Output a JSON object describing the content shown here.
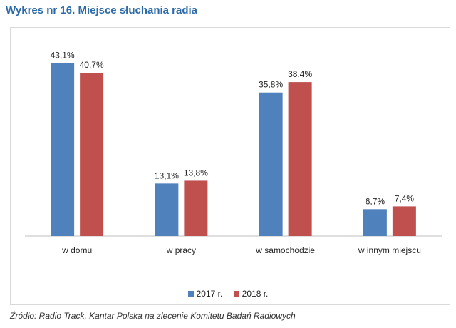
{
  "title": "Wykres nr 16. Miejsce słuchania radia",
  "source": "Źródło: Radio Track, Kantar Polska na zlecenie Komitetu Badań Radiowych",
  "chart_data": {
    "type": "bar",
    "title": "Wykres nr 16. Miejsce słuchania radia",
    "xlabel": "",
    "ylabel": "",
    "ylim": [
      0,
      45
    ],
    "grid": false,
    "legend_position": "bottom",
    "categories": [
      "w domu",
      "w pracy",
      "w samochodzie",
      "w innym miejscu"
    ],
    "series": [
      {
        "name": "2017 r.",
        "color": "#4f81bd",
        "values": [
          43.1,
          13.1,
          35.8,
          6.7
        ],
        "labels": [
          "43,1%",
          "13,1%",
          "35,8%",
          "6,7%"
        ]
      },
      {
        "name": "2018 r.",
        "color": "#c0504d",
        "values": [
          40.7,
          13.8,
          38.4,
          7.4
        ],
        "labels": [
          "40,7%",
          "13,8%",
          "38,4%",
          "7,4%"
        ]
      }
    ]
  }
}
